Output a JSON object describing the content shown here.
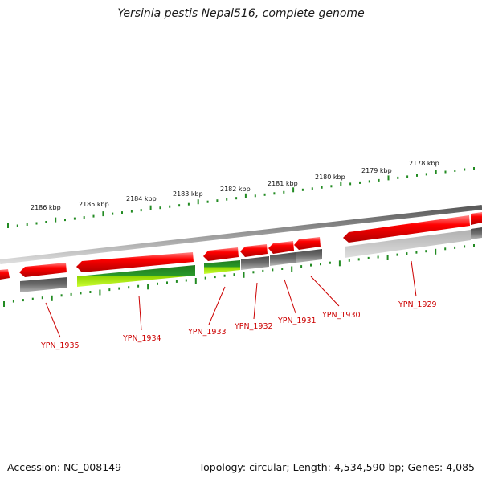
{
  "title": "Yersinia pestis Nepal516, complete genome",
  "footer": {
    "accession": "Accession: NC_008149",
    "summary": "Topology: circular; Length: 4,534,590 bp; Genes: 4,085"
  },
  "scale_labels": [
    "2186 kbp",
    "2185 kbp",
    "2184 kbp",
    "2183 kbp",
    "2182 kbp",
    "2181 kbp",
    "2180 kbp",
    "2179 kbp",
    "2178 kbp"
  ],
  "genes": [
    "YPN_1935",
    "YPN_1934",
    "YPN_1933",
    "YPN_1932",
    "YPN_1931",
    "YPN_1930",
    "YPN_1929"
  ],
  "colors": {
    "cds": "#ff0000",
    "rna_feature": "#2a9a2a",
    "feature_bar": "#666666",
    "backbone": "#888888",
    "tick": "#228b22",
    "label": "#cc0000"
  }
}
